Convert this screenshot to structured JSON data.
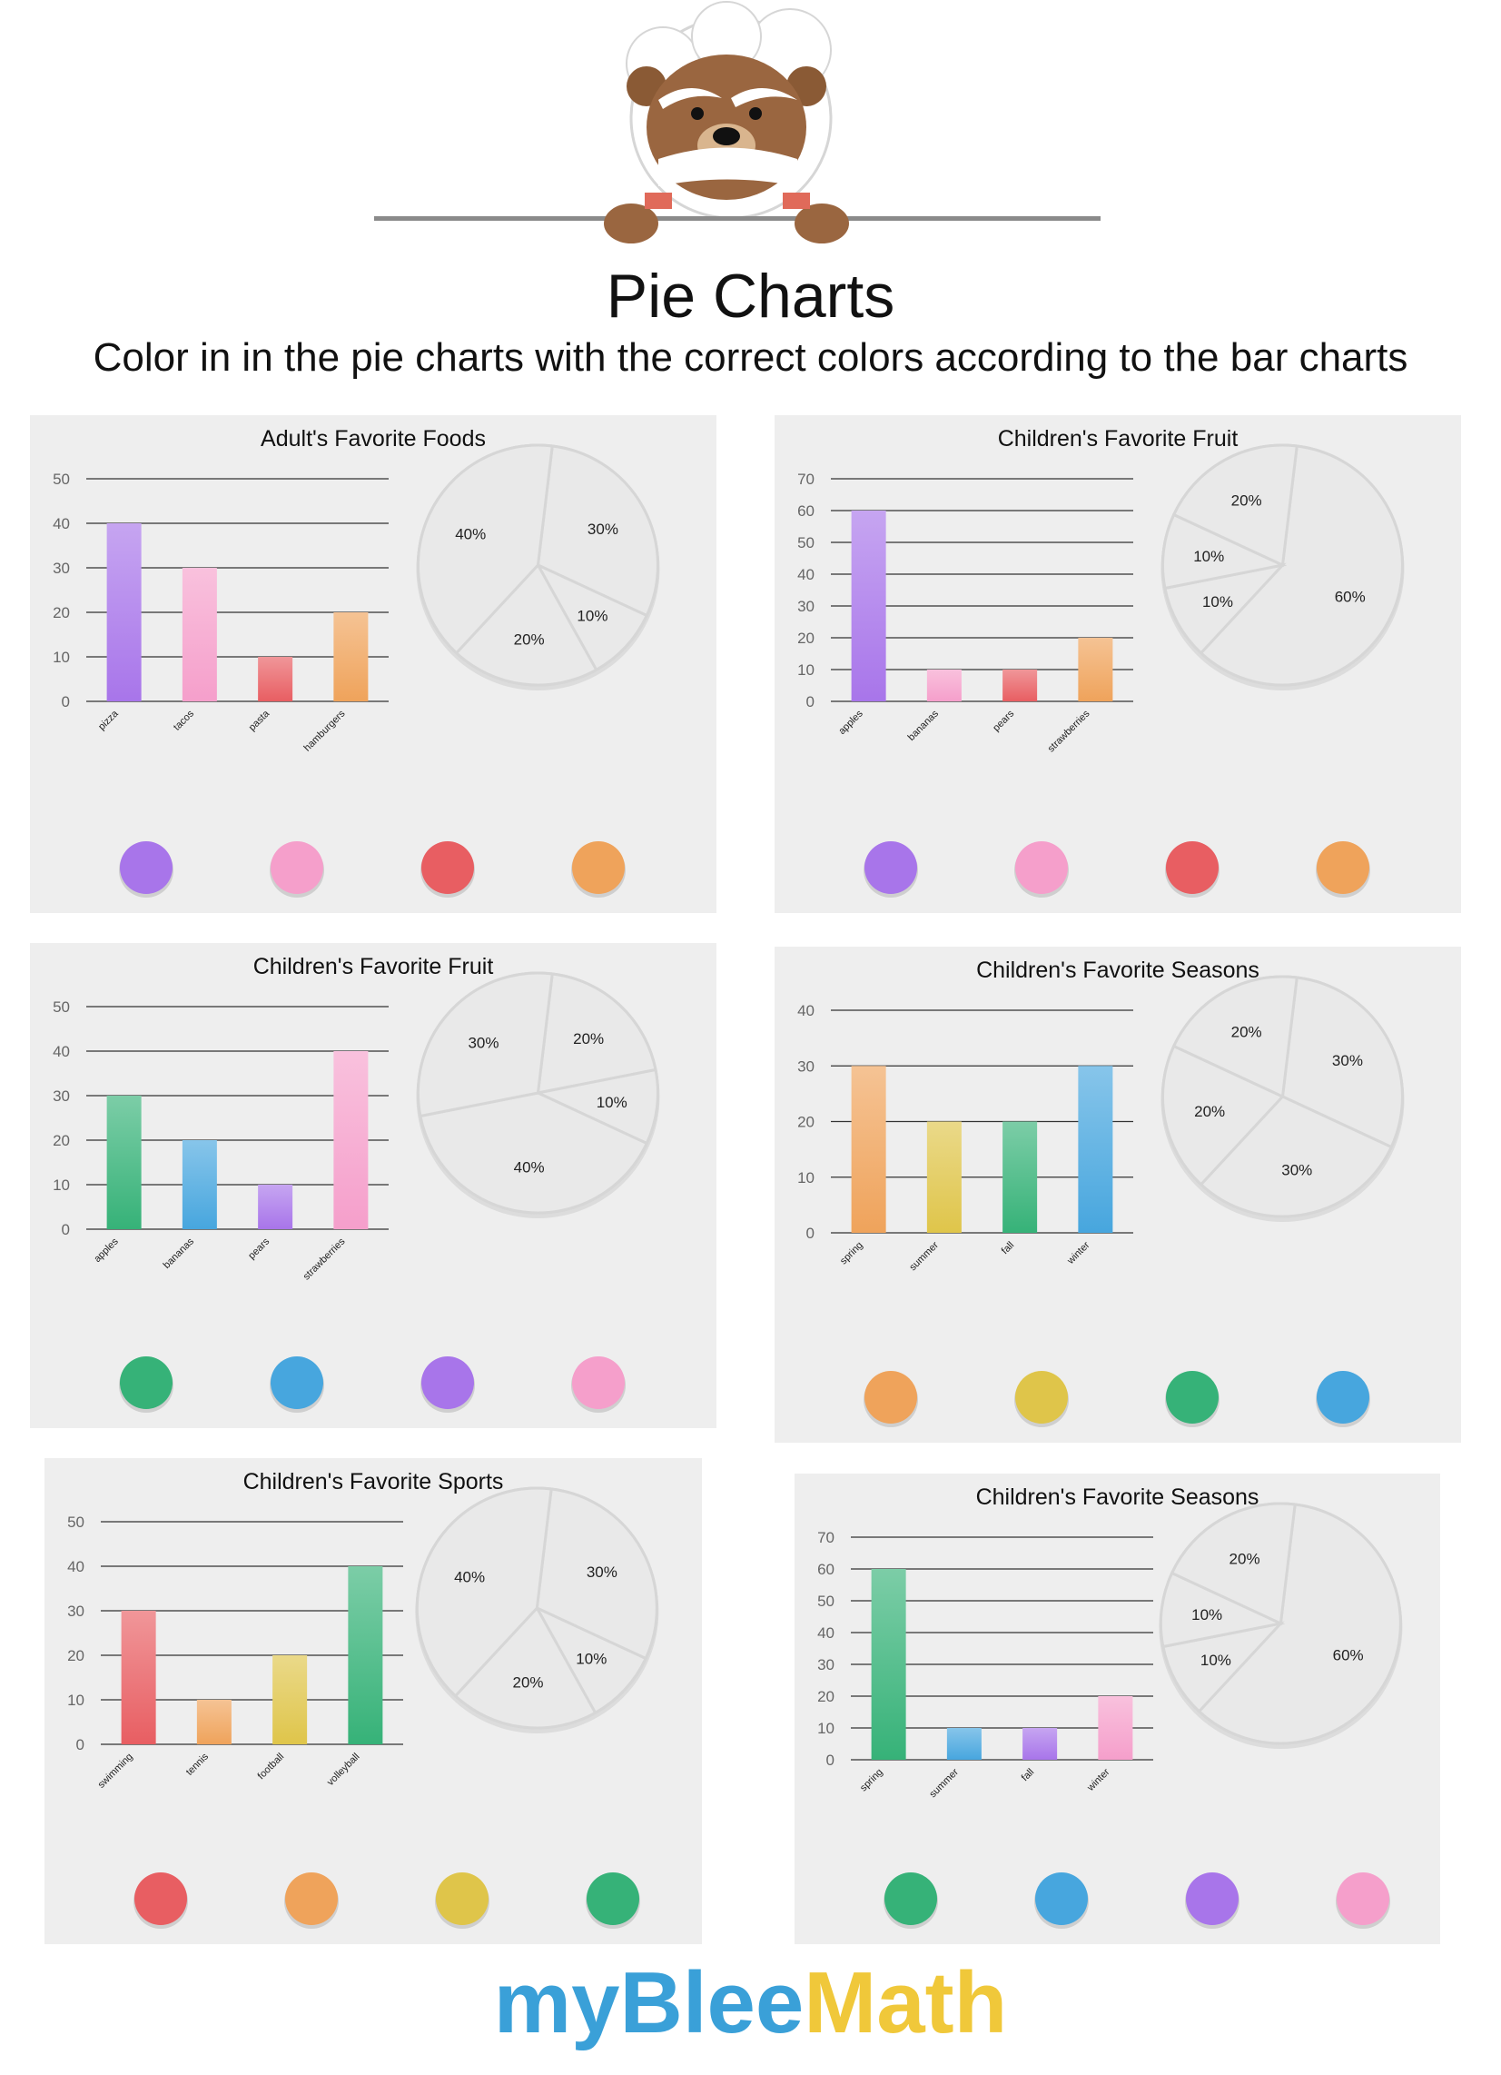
{
  "header": {
    "title": "Pie Charts",
    "subtitle": "Color in in the pie charts with the correct colors according to the bar charts"
  },
  "brand": {
    "part1": "myBlee",
    "part2": "Math"
  },
  "colors": {
    "purple": "#a875ea",
    "pink": "#f59fcb",
    "red": "#e85e62",
    "orange": "#efa35b",
    "green": "#36b278",
    "blue": "#47a6de",
    "yellow": "#dfc54a"
  },
  "chart_data": [
    {
      "type": "bar",
      "title": "Adult's Favorite Foods",
      "categories": [
        "pizza",
        "tacos",
        "pasta",
        "hamburgers"
      ],
      "values": [
        40,
        30,
        10,
        20
      ],
      "yticks": [
        0,
        10,
        20,
        30,
        40,
        50
      ],
      "ylim": [
        0,
        50
      ],
      "bar_colors": [
        "purple",
        "pink",
        "red",
        "orange"
      ],
      "pie": {
        "type": "pie",
        "slices": [
          {
            "label": "30%",
            "value": 30
          },
          {
            "label": "10%",
            "value": 10
          },
          {
            "label": "20%",
            "value": 20
          },
          {
            "label": "40%",
            "value": 40
          }
        ]
      },
      "swatches": [
        "purple",
        "pink",
        "red",
        "orange"
      ]
    },
    {
      "type": "bar",
      "title": "Children's Favorite Fruit",
      "categories": [
        "apples",
        "bananas",
        "pears",
        "strawberries"
      ],
      "values": [
        60,
        10,
        10,
        20
      ],
      "yticks": [
        0,
        10,
        20,
        30,
        40,
        50,
        60,
        70
      ],
      "ylim": [
        0,
        70
      ],
      "bar_colors": [
        "purple",
        "pink",
        "red",
        "orange"
      ],
      "pie": {
        "type": "pie",
        "slices": [
          {
            "label": "60%",
            "value": 60
          },
          {
            "label": "10%",
            "value": 10
          },
          {
            "label": "10%",
            "value": 10
          },
          {
            "label": "20%",
            "value": 20
          }
        ]
      },
      "swatches": [
        "purple",
        "pink",
        "red",
        "orange"
      ]
    },
    {
      "type": "bar",
      "title": "Children's Favorite Fruit",
      "categories": [
        "apples",
        "bananas",
        "pears",
        "strawberries"
      ],
      "values": [
        30,
        20,
        10,
        40
      ],
      "yticks": [
        0,
        10,
        20,
        30,
        40,
        50
      ],
      "ylim": [
        0,
        50
      ],
      "bar_colors": [
        "green",
        "blue",
        "purple",
        "pink"
      ],
      "pie": {
        "type": "pie",
        "slices": [
          {
            "label": "20%",
            "value": 20
          },
          {
            "label": "10%",
            "value": 10
          },
          {
            "label": "40%",
            "value": 40
          },
          {
            "label": "30%",
            "value": 30
          }
        ]
      },
      "swatches": [
        "green",
        "blue",
        "purple",
        "pink"
      ]
    },
    {
      "type": "bar",
      "title": "Children's Favorite Seasons",
      "categories": [
        "spring",
        "summer",
        "fall",
        "winter"
      ],
      "values": [
        30,
        20,
        20,
        30
      ],
      "yticks": [
        0,
        10,
        20,
        30,
        40
      ],
      "ylim": [
        0,
        40
      ],
      "bar_colors": [
        "orange",
        "yellow",
        "green",
        "blue"
      ],
      "pie": {
        "type": "pie",
        "slices": [
          {
            "label": "30%",
            "value": 30
          },
          {
            "label": "30%",
            "value": 30
          },
          {
            "label": "20%",
            "value": 20
          },
          {
            "label": "20%",
            "value": 20
          }
        ]
      },
      "swatches": [
        "orange",
        "yellow",
        "green",
        "blue"
      ]
    },
    {
      "type": "bar",
      "title": "Children's Favorite Sports",
      "categories": [
        "swimming",
        "tennis",
        "football",
        "volleyball"
      ],
      "values": [
        30,
        10,
        20,
        40
      ],
      "yticks": [
        0,
        10,
        20,
        30,
        40,
        50
      ],
      "ylim": [
        0,
        50
      ],
      "bar_colors": [
        "red",
        "orange",
        "yellow",
        "green"
      ],
      "pie": {
        "type": "pie",
        "slices": [
          {
            "label": "30%",
            "value": 30
          },
          {
            "label": "10%",
            "value": 10
          },
          {
            "label": "20%",
            "value": 20
          },
          {
            "label": "40%",
            "value": 40
          }
        ]
      },
      "swatches": [
        "red",
        "orange",
        "yellow",
        "green"
      ]
    },
    {
      "type": "bar",
      "title": "Children's Favorite Seasons",
      "categories": [
        "spring",
        "summer",
        "fall",
        "winter"
      ],
      "values": [
        60,
        10,
        10,
        20
      ],
      "yticks": [
        0,
        10,
        20,
        30,
        40,
        50,
        60,
        70
      ],
      "ylim": [
        0,
        70
      ],
      "bar_colors": [
        "green",
        "blue",
        "purple",
        "pink"
      ],
      "pie": {
        "type": "pie",
        "slices": [
          {
            "label": "60%",
            "value": 60
          },
          {
            "label": "10%",
            "value": 10
          },
          {
            "label": "10%",
            "value": 10
          },
          {
            "label": "20%",
            "value": 20
          }
        ]
      },
      "swatches": [
        "green",
        "blue",
        "purple",
        "pink"
      ]
    }
  ]
}
